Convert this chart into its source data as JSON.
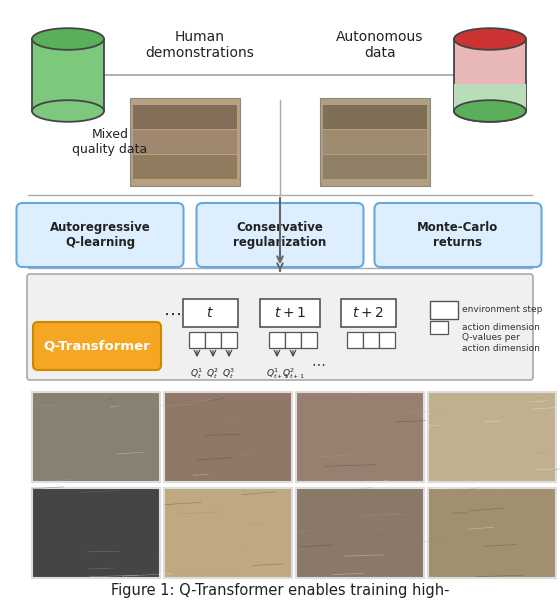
{
  "title": "Figure 1: Q-Transformer enables training high-",
  "title_fontsize": 10.5,
  "bg_color": "#ffffff",
  "human_demo_text": "Human\ndemonstrations",
  "autonomous_data_text": "Autonomous\ndata",
  "mixed_quality_text": "Mixed\nquality data",
  "cylinder_green_body": "#7cc87c",
  "cylinder_green_top": "#5ab05a",
  "cylinder_red_top": "#cc3333",
  "cylinder_red_body": "#e8b8b8",
  "cylinder_green2_body": "#b8ddb8",
  "cylinder_green2_top": "#5ab05a",
  "box1_text": "Autoregressive\nQ-learning",
  "box2_text": "Conservative\nregularization",
  "box3_text": "Monte-Carlo\nreturns",
  "box_fill": "#ddeeff",
  "box_edge": "#66aadd",
  "qtransformer_text": "Q-Transformer",
  "qtransformer_fill": "#f5a623",
  "qtransformer_edge": "#cc8800",
  "env_step_text": "environment step",
  "action_dim_text": "action dimension",
  "qval_text": "Q-values per\naction dimension",
  "diagram_bg": "#f0f0f0",
  "diagram_edge": "#aaaaaa",
  "arrow_color": "#666666",
  "separator_color": "#aaaaaa",
  "img1_colors": [
    "#5a5a5a",
    "#8a7060",
    "#7a6858",
    "#c8b090"
  ],
  "img2_colors": [
    "#6a5848",
    "#7a6858",
    "#9a8870",
    "#b8a888"
  ],
  "grid_row1_colors": [
    "#454545",
    "#c0a880",
    "#8a7868",
    "#a09070"
  ],
  "grid_row2_colors": [
    "#888070",
    "#907868",
    "#988070",
    "#c0b090"
  ]
}
